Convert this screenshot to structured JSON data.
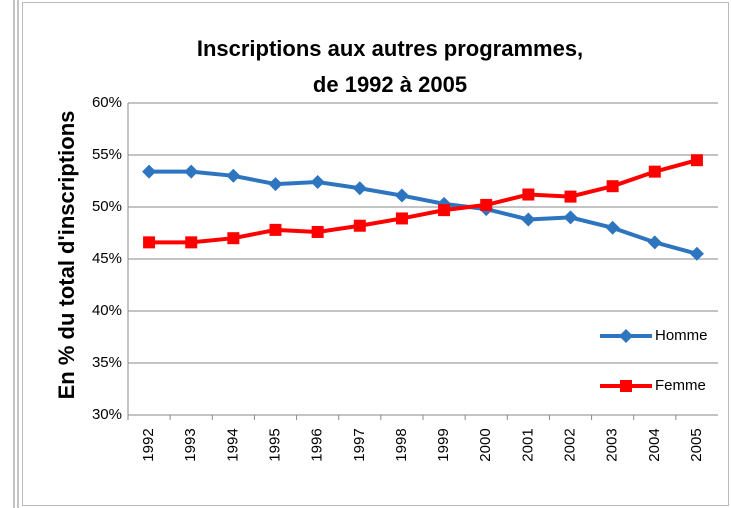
{
  "chart_data": {
    "type": "line",
    "title": "Inscriptions aux autres programmes,",
    "subtitle": "de 1992 à 2005",
    "y_label": "En % du total d'inscriptions",
    "categories": [
      "1992",
      "1993",
      "1994",
      "1995",
      "1996",
      "1997",
      "1998",
      "1999",
      "2000",
      "2001",
      "2002",
      "2003",
      "2004",
      "2005"
    ],
    "series": [
      {
        "name": "Homme",
        "color": "#2e75c0",
        "marker": "diamond",
        "values": [
          53.4,
          53.4,
          53.0,
          52.2,
          52.4,
          51.8,
          51.1,
          50.3,
          49.8,
          48.8,
          49.0,
          48.0,
          46.6,
          45.5
        ]
      },
      {
        "name": "Femme",
        "color": "#ff0000",
        "marker": "square",
        "values": [
          46.6,
          46.6,
          47.0,
          47.8,
          47.6,
          48.2,
          48.9,
          49.7,
          50.2,
          51.2,
          51.0,
          52.0,
          53.4,
          54.5
        ]
      }
    ],
    "ylim": [
      30,
      60
    ],
    "yticks": [
      {
        "value": 30,
        "label": "30%"
      },
      {
        "value": 35,
        "label": "35%"
      },
      {
        "value": 40,
        "label": "40%"
      },
      {
        "value": 45,
        "label": "45%"
      },
      {
        "value": 50,
        "label": "50%"
      },
      {
        "value": 55,
        "label": "55%"
      },
      {
        "value": 60,
        "label": "60%"
      }
    ],
    "grid": true,
    "legend": "right"
  }
}
